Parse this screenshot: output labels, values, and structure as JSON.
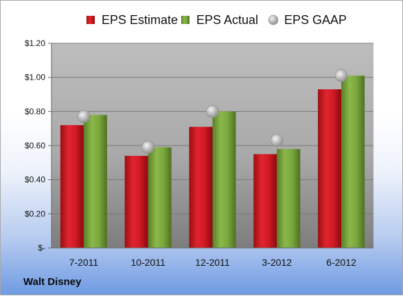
{
  "company": "Walt Disney",
  "chart_data": {
    "type": "bar",
    "categories": [
      "7-2011",
      "10-2011",
      "12-2011",
      "3-2012",
      "6-2012"
    ],
    "series": [
      {
        "name": "EPS Estimate",
        "kind": "bar",
        "color": "#c9161e",
        "values": [
          0.72,
          0.54,
          0.71,
          0.55,
          0.93
        ]
      },
      {
        "name": "EPS Actual",
        "kind": "bar",
        "color": "#76a03a",
        "values": [
          0.78,
          0.59,
          0.8,
          0.58,
          1.01
        ]
      },
      {
        "name": "EPS GAAP",
        "kind": "marker",
        "color": "#a6a6a6",
        "values": [
          0.77,
          0.59,
          0.8,
          0.63,
          1.01
        ]
      }
    ],
    "ylim": [
      0,
      1.2
    ],
    "yticks": [
      {
        "value": 0,
        "label": "$-"
      },
      {
        "value": 0.2,
        "label": "$0.20"
      },
      {
        "value": 0.4,
        "label": "$0.40"
      },
      {
        "value": 0.6,
        "label": "$0.60"
      },
      {
        "value": 0.8,
        "label": "$0.80"
      },
      {
        "value": 1.0,
        "label": "$1.00"
      },
      {
        "value": 1.2,
        "label": "$1.20"
      }
    ],
    "grid": true,
    "legend_position": "top"
  }
}
